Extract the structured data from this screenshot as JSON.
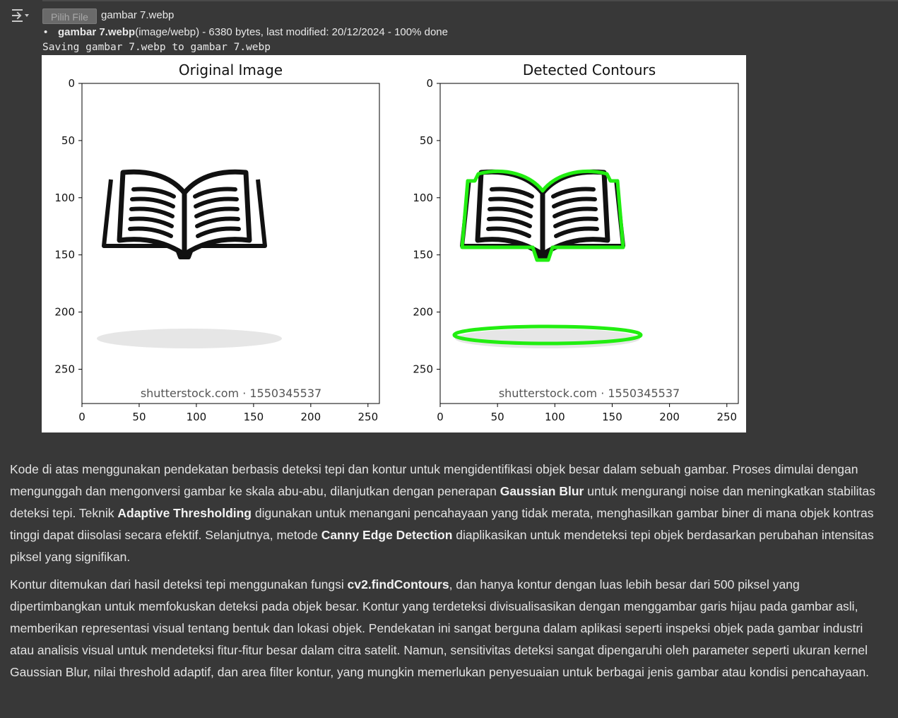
{
  "output": {
    "icon": "output-toggle-icon",
    "upload_button_label": "Pilih File",
    "selected_file_name": "gambar 7.webp",
    "file_info": {
      "name": "gambar 7.webp",
      "details": "(image/webp) - 6380 bytes, last modified: 20/12/2024 - 100% done"
    },
    "saving_message": "Saving gambar 7.webp to gambar 7.webp"
  },
  "figure": {
    "watermark": "shutterstock.com · 1550345537",
    "contour_color": "#22ee11",
    "axis_ticks": {
      "x": [
        0,
        50,
        100,
        150,
        200,
        250
      ],
      "y": [
        0,
        50,
        100,
        150,
        200,
        250
      ]
    },
    "subplots": [
      {
        "title": "Original Image",
        "xlim": [
          0,
          260
        ],
        "ylim": [
          280,
          0
        ],
        "show_contours": false
      },
      {
        "title": "Detected Contours",
        "xlim": [
          0,
          260
        ],
        "ylim": [
          280,
          0
        ],
        "show_contours": true
      }
    ]
  },
  "description": {
    "paragraph1": [
      {
        "t": "Kode di atas menggunakan pendekatan berbasis deteksi tepi dan kontur untuk mengidentifikasi objek besar dalam sebuah gambar. Proses dimulai dengan mengunggah dan mengonversi gambar ke skala abu-abu, dilanjutkan dengan penerapan ",
        "b": false
      },
      {
        "t": "Gaussian Blur",
        "b": true
      },
      {
        "t": " untuk mengurangi noise dan meningkatkan stabilitas deteksi tepi. Teknik ",
        "b": false
      },
      {
        "t": "Adaptive Thresholding",
        "b": true
      },
      {
        "t": " digunakan untuk menangani pencahayaan yang tidak merata, menghasilkan gambar biner di mana objek kontras tinggi dapat diisolasi secara efektif. Selanjutnya, metode ",
        "b": false
      },
      {
        "t": "Canny Edge Detection",
        "b": true
      },
      {
        "t": " diaplikasikan untuk mendeteksi tepi objek berdasarkan perubahan intensitas piksel yang signifikan.",
        "b": false
      }
    ],
    "paragraph2": [
      {
        "t": "Kontur ditemukan dari hasil deteksi tepi menggunakan fungsi ",
        "b": false
      },
      {
        "t": "cv2.findContours",
        "b": true
      },
      {
        "t": ", dan hanya kontur dengan luas lebih besar dari 500 piksel yang dipertimbangkan untuk memfokuskan deteksi pada objek besar. Kontur yang terdeteksi divisualisasikan dengan menggambar garis hijau pada gambar asli, memberikan representasi visual tentang bentuk dan lokasi objek. Pendekatan ini sangat berguna dalam aplikasi seperti inspeksi objek pada gambar industri atau analisis visual untuk mendeteksi fitur-fitur besar dalam citra satelit. Namun, sensitivitas deteksi sangat dipengaruhi oleh parameter seperti ukuran kernel Gaussian Blur, nilai threshold adaptif, dan area filter kontur, yang mungkin memerlukan penyesuaian untuk berbagai jenis gambar atau kondisi pencahayaan.",
        "b": false
      }
    ]
  }
}
